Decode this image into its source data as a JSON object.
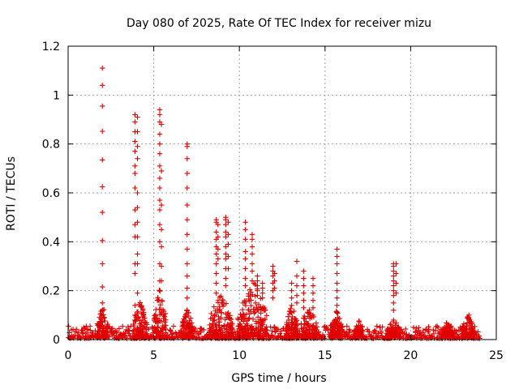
{
  "chart_data": {
    "type": "scatter",
    "title": "Day 080 of 2025, Rate Of TEC Index for receiver mizu",
    "xlabel": "GPS time / hours",
    "ylabel": "ROTI / TECUs",
    "xlim": [
      0,
      25
    ],
    "ylim": [
      0,
      1.2
    ],
    "xticks": [
      0,
      5,
      10,
      15,
      20,
      25
    ],
    "yticks": [
      0,
      0.2,
      0.4,
      0.6,
      0.8,
      1,
      1.2
    ],
    "xtick_labels": [
      "0",
      "5",
      "10",
      "15",
      "20",
      "25"
    ],
    "ytick_labels": [
      "0",
      "0.2",
      "0.4",
      "0.6",
      "0.8",
      "1",
      "1.2"
    ],
    "grid": true,
    "marker": "plus",
    "color": "#e00000",
    "baseline": {
      "x_start": 0,
      "x_end": 24,
      "typical_max": 0.05
    },
    "spikes": [
      {
        "x": 2.0,
        "y": [
          1.11,
          1.04,
          0.955,
          0.852,
          0.735,
          0.625,
          0.52,
          0.405,
          0.31,
          0.215,
          0.15,
          0.12,
          0.09
        ]
      },
      {
        "x": 3.9,
        "y": [
          0.92,
          0.89,
          0.85,
          0.81,
          0.77,
          0.71,
          0.68,
          0.62,
          0.53,
          0.47,
          0.42,
          0.31,
          0.27,
          0.14,
          0.1
        ]
      },
      {
        "x": 4.05,
        "y": [
          0.91,
          0.85,
          0.79,
          0.74,
          0.6,
          0.54,
          0.48,
          0.42,
          0.35,
          0.31,
          0.19
        ]
      },
      {
        "x": 5.35,
        "y": [
          0.94,
          0.92,
          0.89,
          0.84,
          0.8,
          0.76,
          0.71,
          0.66,
          0.62,
          0.57,
          0.53,
          0.47,
          0.4,
          0.31,
          0.24,
          0.2
        ]
      },
      {
        "x": 5.45,
        "y": [
          0.88,
          0.69,
          0.55,
          0.45,
          0.38,
          0.3,
          0.24
        ]
      },
      {
        "x": 6.95,
        "y": [
          0.8,
          0.79,
          0.74,
          0.68,
          0.62,
          0.55,
          0.49,
          0.43,
          0.37,
          0.31,
          0.26,
          0.21,
          0.17,
          0.12
        ]
      },
      {
        "x": 8.65,
        "y": [
          0.49,
          0.48,
          0.44,
          0.41,
          0.38,
          0.35,
          0.31,
          0.27,
          0.23,
          0.19
        ]
      },
      {
        "x": 8.75,
        "y": [
          0.47,
          0.42,
          0.37,
          0.33
        ]
      },
      {
        "x": 9.2,
        "y": [
          0.5,
          0.49,
          0.47,
          0.44,
          0.42,
          0.38,
          0.35,
          0.33,
          0.29,
          0.25,
          0.22
        ]
      },
      {
        "x": 9.35,
        "y": [
          0.48,
          0.43,
          0.39,
          0.34,
          0.29
        ]
      },
      {
        "x": 10.35,
        "y": [
          0.48,
          0.45,
          0.41,
          0.36,
          0.33,
          0.29,
          0.25,
          0.22
        ]
      },
      {
        "x": 10.75,
        "y": [
          0.43,
          0.41,
          0.38,
          0.35,
          0.31,
          0.28,
          0.24
        ]
      },
      {
        "x": 11.05,
        "y": [
          0.26,
          0.24,
          0.22,
          0.2,
          0.18
        ]
      },
      {
        "x": 11.35,
        "y": [
          0.23,
          0.21,
          0.19,
          0.17
        ]
      },
      {
        "x": 11.95,
        "y": [
          0.3,
          0.28,
          0.26,
          0.23,
          0.2,
          0.17
        ]
      },
      {
        "x": 12.05,
        "y": [
          0.27,
          0.24,
          0.21
        ]
      },
      {
        "x": 13.05,
        "y": [
          0.23,
          0.2,
          0.17,
          0.14,
          0.11
        ]
      },
      {
        "x": 13.35,
        "y": [
          0.32,
          0.26,
          0.22,
          0.18,
          0.15
        ]
      },
      {
        "x": 13.75,
        "y": [
          0.28,
          0.25,
          0.22,
          0.19,
          0.16,
          0.13
        ]
      },
      {
        "x": 14.3,
        "y": [
          0.25,
          0.22,
          0.19,
          0.16,
          0.13,
          0.1
        ]
      },
      {
        "x": 15.7,
        "y": [
          0.37,
          0.34,
          0.31,
          0.27,
          0.23,
          0.2,
          0.17,
          0.14,
          0.11
        ]
      },
      {
        "x": 19.0,
        "y": [
          0.31,
          0.3,
          0.28,
          0.26,
          0.24,
          0.22,
          0.2,
          0.18,
          0.15,
          0.12,
          0.08
        ]
      },
      {
        "x": 19.15,
        "y": [
          0.31,
          0.27,
          0.23,
          0.19
        ]
      },
      {
        "x": 23.4,
        "y": [
          0.1,
          0.09,
          0.08,
          0.07
        ]
      }
    ],
    "clusters": [
      {
        "x_start": 1.7,
        "x_end": 2.3,
        "y_max": 0.14
      },
      {
        "x_start": 3.8,
        "x_end": 4.6,
        "y_max": 0.15
      },
      {
        "x_start": 5.0,
        "x_end": 5.7,
        "y_max": 0.22
      },
      {
        "x_start": 6.6,
        "x_end": 7.3,
        "y_max": 0.12
      },
      {
        "x_start": 8.2,
        "x_end": 9.6,
        "y_max": 0.19
      },
      {
        "x_start": 9.9,
        "x_end": 11.6,
        "y_max": 0.25
      },
      {
        "x_start": 12.7,
        "x_end": 13.4,
        "y_max": 0.14
      },
      {
        "x_start": 13.6,
        "x_end": 14.5,
        "y_max": 0.15
      },
      {
        "x_start": 15.3,
        "x_end": 16.0,
        "y_max": 0.12
      },
      {
        "x_start": 16.7,
        "x_end": 17.2,
        "y_max": 0.07
      },
      {
        "x_start": 18.6,
        "x_end": 19.4,
        "y_max": 0.08
      },
      {
        "x_start": 21.8,
        "x_end": 22.5,
        "y_max": 0.07
      },
      {
        "x_start": 23.0,
        "x_end": 23.7,
        "y_max": 0.1
      }
    ]
  }
}
